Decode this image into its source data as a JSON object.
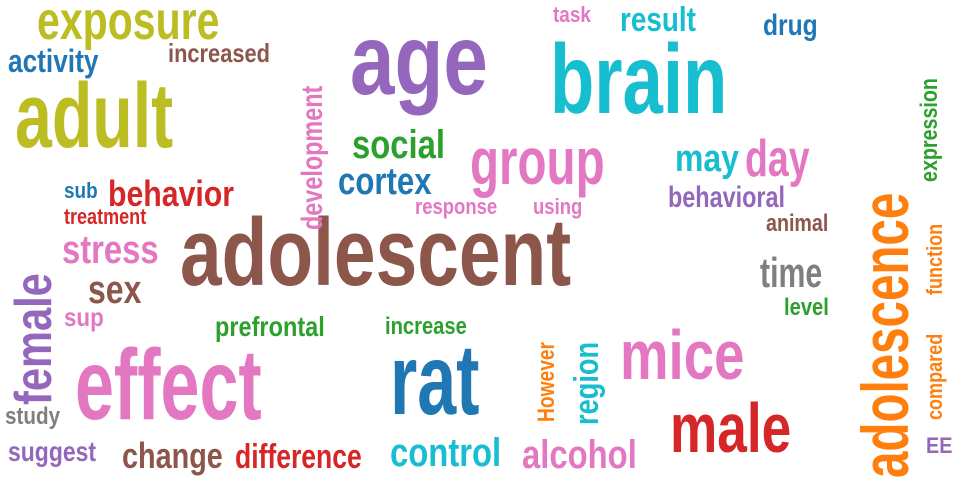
{
  "colors": {
    "brown": "#8c564b",
    "olive": "#bcbd22",
    "purple": "#9467bd",
    "cyan": "#17becf",
    "orange": "#ff7f0e",
    "pink": "#e377c2",
    "red": "#d62728",
    "blue": "#1f77b4",
    "gray": "#7f7f7f",
    "green": "#2ca02c"
  },
  "words": [
    {
      "text": "adolescent",
      "color": "brown"
    },
    {
      "text": "adult",
      "color": "olive"
    },
    {
      "text": "age",
      "color": "purple"
    },
    {
      "text": "brain",
      "color": "cyan"
    },
    {
      "text": "adolescence",
      "color": "orange"
    },
    {
      "text": "effect",
      "color": "pink"
    },
    {
      "text": "rat",
      "color": "blue"
    },
    {
      "text": "mice",
      "color": "pink"
    },
    {
      "text": "male",
      "color": "red"
    },
    {
      "text": "group",
      "color": "pink"
    },
    {
      "text": "female",
      "color": "purple"
    },
    {
      "text": "exposure",
      "color": "olive"
    },
    {
      "text": "day",
      "color": "pink"
    },
    {
      "text": "development",
      "color": "pink"
    },
    {
      "text": "result",
      "color": "cyan"
    },
    {
      "text": "social",
      "color": "green"
    },
    {
      "text": "cortex",
      "color": "blue"
    },
    {
      "text": "behavior",
      "color": "red"
    },
    {
      "text": "stress",
      "color": "pink"
    },
    {
      "text": "sex",
      "color": "brown"
    },
    {
      "text": "time",
      "color": "gray"
    },
    {
      "text": "control",
      "color": "cyan"
    },
    {
      "text": "alcohol",
      "color": "pink"
    },
    {
      "text": "change",
      "color": "brown"
    },
    {
      "text": "difference",
      "color": "red"
    },
    {
      "text": "may",
      "color": "cyan"
    },
    {
      "text": "behavioral",
      "color": "purple"
    },
    {
      "text": "activity",
      "color": "blue"
    },
    {
      "text": "increased",
      "color": "brown"
    },
    {
      "text": "drug",
      "color": "blue"
    },
    {
      "text": "task",
      "color": "pink"
    },
    {
      "text": "expression",
      "color": "green"
    },
    {
      "text": "function",
      "color": "orange"
    },
    {
      "text": "compared",
      "color": "orange"
    },
    {
      "text": "region",
      "color": "cyan"
    },
    {
      "text": "However",
      "color": "orange"
    },
    {
      "text": "prefrontal",
      "color": "green"
    },
    {
      "text": "increase",
      "color": "green"
    },
    {
      "text": "response",
      "color": "pink"
    },
    {
      "text": "using",
      "color": "pink"
    },
    {
      "text": "animal",
      "color": "brown"
    },
    {
      "text": "level",
      "color": "green"
    },
    {
      "text": "suggest",
      "color": "purple"
    },
    {
      "text": "study",
      "color": "gray"
    },
    {
      "text": "sub",
      "color": "blue"
    },
    {
      "text": "treatment",
      "color": "red"
    },
    {
      "text": "sup",
      "color": "pink"
    },
    {
      "text": "EE",
      "color": "purple"
    }
  ]
}
